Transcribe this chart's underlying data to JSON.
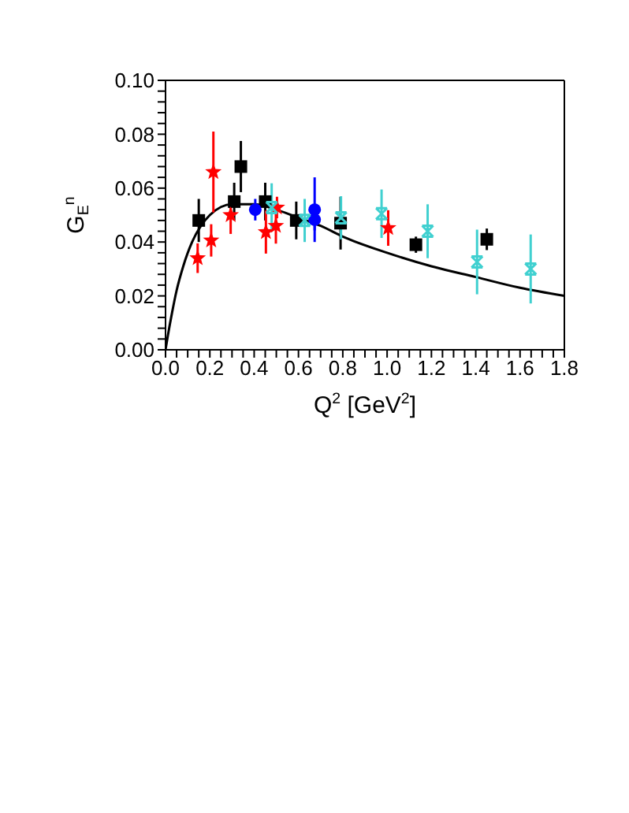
{
  "chart_data": {
    "type": "scatter",
    "xlabel": "Q$^{2}$ [GeV$^{2}$]",
    "ylabel": "G$_{E}$$^{n}$",
    "xlim": [
      0,
      1.8
    ],
    "ylim": [
      0,
      0.1
    ],
    "xticks": [
      {
        "value": 0,
        "label": "0.0"
      },
      {
        "value": 0.05,
        "label": null
      },
      {
        "value": 0.1,
        "label": null
      },
      {
        "value": 0.15,
        "label": null
      },
      0.2,
      {
        "value": 0.25,
        "label": null
      },
      {
        "value": 0.3,
        "label": null
      },
      {
        "value": 0.35,
        "label": null
      },
      0.4,
      {
        "value": 0.45,
        "label": null
      },
      {
        "value": 0.5,
        "label": null
      },
      {
        "value": 0.55,
        "label": null
      },
      0.6,
      {
        "value": 0.65,
        "label": null
      },
      {
        "value": 0.7,
        "label": null
      },
      {
        "value": 0.75,
        "label": null
      },
      0.8,
      {
        "value": 0.85,
        "label": null
      },
      {
        "value": 0.9,
        "label": null
      },
      {
        "value": 0.95,
        "label": null
      },
      {
        "value": 1,
        "label": "1.0"
      },
      {
        "value": 1.05,
        "label": null
      },
      {
        "value": 1.1,
        "label": null
      },
      {
        "value": 1.15,
        "label": null
      },
      1.2,
      {
        "value": 1.25,
        "label": null
      },
      {
        "value": 1.3,
        "label": null
      },
      {
        "value": 1.35,
        "label": null
      },
      1.4,
      {
        "value": 1.45,
        "label": null
      },
      {
        "value": 1.5,
        "label": null
      },
      {
        "value": 1.55,
        "label": null
      },
      1.6,
      {
        "value": 1.65,
        "label": null
      },
      {
        "value": 1.7,
        "label": null
      },
      {
        "value": 1.75,
        "label": null
      },
      1.8
    ],
    "yticks": [
      {
        "value": 0,
        "label": "0.00"
      },
      {
        "value": 0.004,
        "label": null
      },
      {
        "value": 0.008,
        "label": null
      },
      {
        "value": 0.012,
        "label": null
      },
      {
        "value": 0.016,
        "label": null
      },
      {
        "value": 0.02,
        "label": "0.02"
      },
      {
        "value": 0.024,
        "label": null
      },
      {
        "value": 0.028,
        "label": null
      },
      {
        "value": 0.032,
        "label": null
      },
      {
        "value": 0.036,
        "label": null
      },
      {
        "value": 0.04,
        "label": "0.04"
      },
      {
        "value": 0.044,
        "label": null
      },
      {
        "value": 0.048,
        "label": null
      },
      {
        "value": 0.052,
        "label": null
      },
      {
        "value": 0.056,
        "label": null
      },
      {
        "value": 0.06,
        "label": "0.06"
      },
      {
        "value": 0.064,
        "label": null
      },
      {
        "value": 0.068,
        "label": null
      },
      {
        "value": 0.072,
        "label": null
      },
      {
        "value": 0.076,
        "label": null
      },
      {
        "value": 0.08,
        "label": "0.08"
      },
      {
        "value": 0.084,
        "label": null
      },
      {
        "value": 0.088,
        "label": null
      },
      {
        "value": 0.092,
        "label": null
      },
      {
        "value": 0.096,
        "label": null
      },
      {
        "value": 0.1,
        "label": "0.10"
      }
    ],
    "series": [
      {
        "type": "line",
        "color": "#000000",
        "marker": "none",
        "line_style": "solid",
        "x": [
          0,
          0.01,
          0.03,
          0.05,
          0.08,
          0.12,
          0.16,
          0.2,
          0.25,
          0.3,
          0.4,
          0.5,
          0.6,
          0.7,
          0.8,
          1.0,
          1.2,
          1.4,
          1.6,
          1.8
        ],
        "values": [
          0,
          0.005,
          0.014,
          0.022,
          0.031,
          0.04,
          0.046,
          0.05,
          0.053,
          0.054,
          0.054,
          0.052,
          0.049,
          0.046,
          0.042,
          0.036,
          0.031,
          0.027,
          0.023,
          0.02
        ]
      },
      {
        "color": "#000000",
        "marker": "square",
        "x": [
          0.15,
          0.31,
          0.34,
          0.45,
          0.59,
          0.79,
          1.13,
          1.45
        ],
        "values": [
          0.048,
          0.055,
          0.068,
          0.055,
          0.048,
          0.047,
          0.039,
          0.041
        ],
        "errors": [
          0.008,
          0.007,
          0.0095,
          0.007,
          0.007,
          0.0098,
          0.003,
          0.004
        ]
      },
      {
        "color": "#ff0000",
        "marker": "star",
        "x": [
          0.145,
          0.206,
          0.216,
          0.294,
          0.453,
          0.498,
          0.503,
          1.005
        ],
        "values": [
          0.034,
          0.0406,
          0.066,
          0.05,
          0.0437,
          0.046,
          0.0528,
          0.0452
        ],
        "errors": [
          0.0055,
          0.006,
          0.015,
          0.007,
          0.008,
          0.0066,
          0.004,
          0.0066
        ]
      },
      {
        "color": "#0000ff",
        "marker": "circle",
        "x": [
          0.405,
          0.673,
          0.673
        ],
        "values": [
          0.052,
          0.052,
          0.0483
        ],
        "errors": [
          0.004,
          0.012,
          0.004
        ]
      },
      {
        "color": "#40d0d0",
        "marker": "cross",
        "x": [
          0.479,
          0.628,
          0.792,
          0.975,
          1.183,
          1.406,
          1.648
        ],
        "values": [
          0.0528,
          0.048,
          0.049,
          0.0505,
          0.044,
          0.0326,
          0.03
        ],
        "errors": [
          0.009,
          0.008,
          0.008,
          0.009,
          0.01,
          0.012,
          0.0128
        ]
      }
    ]
  }
}
